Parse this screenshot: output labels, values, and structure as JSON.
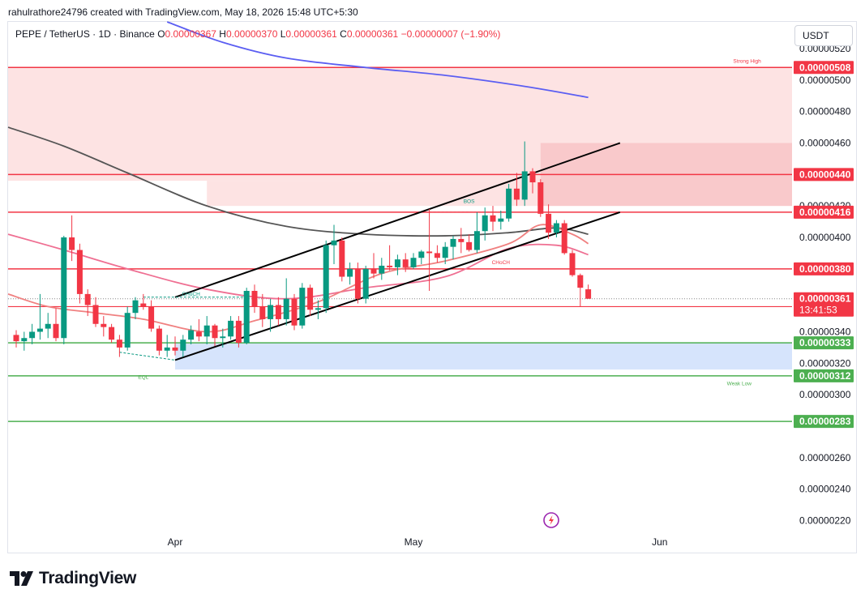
{
  "header": {
    "credit": "rahulrathore24796 created with TradingView.com, May 18, 2026 15:48 UTC+5:30"
  },
  "symbol": {
    "name": "PEPE / TetherUS · 1D · Binance",
    "open_label": "O",
    "open_value": "0.00000367",
    "high_label": "H",
    "high_value": "0.00000370",
    "low_label": "L",
    "low_value": "0.00000361",
    "close_label": "C",
    "close_value": "0.00000361",
    "change": "−0.00000007 (−1.90%)"
  },
  "currency": "USDT",
  "logo_text": "TradingView",
  "colors": {
    "up": "#089981",
    "down": "#f23645",
    "resistance": "#f23645",
    "support": "#4caf50",
    "ma_blue": "#5b5ef2",
    "ma_gray": "#555555",
    "ma_pink": "#ef6f92",
    "supply_zone": "#fde3e3",
    "supply_zone_dark": "#f9c9cb",
    "demand_zone": "#d6e4fc"
  },
  "chart_data": {
    "type": "candlestick",
    "ylim": [
      2.12e-06,
      5.37e-06
    ],
    "x_ticks": [
      {
        "label": "Apr",
        "index": 20
      },
      {
        "label": "May",
        "index": 50
      },
      {
        "label": "Jun",
        "index": 81
      }
    ],
    "y_ticks": [
      {
        "label": "0.00000520",
        "value": 5.2e-06
      },
      {
        "label": "0.00000500",
        "value": 5e-06
      },
      {
        "label": "0.00000480",
        "value": 4.8e-06
      },
      {
        "label": "0.00000460",
        "value": 4.6e-06
      },
      {
        "label": "0.00000420",
        "value": 4.2e-06
      },
      {
        "label": "0.00000400",
        "value": 4e-06
      },
      {
        "label": "0.00000340",
        "value": 3.4e-06
      },
      {
        "label": "0.00000320",
        "value": 3.2e-06
      },
      {
        "label": "0.00000300",
        "value": 3e-06
      },
      {
        "label": "0.00000260",
        "value": 2.6e-06
      },
      {
        "label": "0.00000240",
        "value": 2.4e-06
      },
      {
        "label": "0.00000220",
        "value": 2.2e-06
      }
    ],
    "candles": [
      [
        3.38e-06,
        3.41e-06,
        3.3e-06,
        3.34e-06
      ],
      [
        3.34e-06,
        3.4e-06,
        3.28e-06,
        3.36e-06
      ],
      [
        3.36e-06,
        3.45e-06,
        3.32e-06,
        3.4e-06
      ],
      [
        3.4e-06,
        3.64e-06,
        3.35e-06,
        3.42e-06
      ],
      [
        3.42e-06,
        3.52e-06,
        3.36e-06,
        3.45e-06
      ],
      [
        3.45e-06,
        3.55e-06,
        3.34e-06,
        3.36e-06
      ],
      [
        3.36e-06,
        4.01e-06,
        3.32e-06,
        4e-06
      ],
      [
        4e-06,
        4.14e-06,
        3.85e-06,
        3.92e-06
      ],
      [
        3.92e-06,
        3.96e-06,
        3.58e-06,
        3.64e-06
      ],
      [
        3.64e-06,
        3.67e-06,
        3.5e-06,
        3.57e-06
      ],
      [
        3.57e-06,
        3.62e-06,
        3.43e-06,
        3.45e-06
      ],
      [
        3.45e-06,
        3.5e-06,
        3.37e-06,
        3.43e-06
      ],
      [
        3.43e-06,
        3.45e-06,
        3.33e-06,
        3.35e-06
      ],
      [
        3.35e-06,
        3.38e-06,
        3.24e-06,
        3.3e-06
      ],
      [
        3.3e-06,
        3.56e-06,
        3.28e-06,
        3.52e-06
      ],
      [
        3.52e-06,
        3.62e-06,
        3.48e-06,
        3.6e-06
      ],
      [
        3.58e-06,
        3.64e-06,
        3.54e-06,
        3.56e-06
      ],
      [
        3.56e-06,
        3.6e-06,
        3.4e-06,
        3.42e-06
      ],
      [
        3.42e-06,
        3.44e-06,
        3.25e-06,
        3.28e-06
      ],
      [
        3.28e-06,
        3.38e-06,
        3.24e-06,
        3.3e-06
      ],
      [
        3.3e-06,
        3.37e-06,
        3.25e-06,
        3.28e-06
      ],
      [
        3.28e-06,
        3.38e-06,
        3.24e-06,
        3.35e-06
      ],
      [
        3.35e-06,
        3.44e-06,
        3.32e-06,
        3.41e-06
      ],
      [
        3.4e-06,
        3.48e-06,
        3.34e-06,
        3.37e-06
      ],
      [
        3.37e-06,
        3.5e-06,
        3.32e-06,
        3.44e-06
      ],
      [
        3.44e-06,
        3.45e-06,
        3.31e-06,
        3.36e-06
      ],
      [
        3.36e-06,
        3.42e-06,
        3.3e-06,
        3.37e-06
      ],
      [
        3.37e-06,
        3.5e-06,
        3.35e-06,
        3.47e-06
      ],
      [
        3.47e-06,
        3.5e-06,
        3.3e-06,
        3.33e-06
      ],
      [
        3.33e-06,
        3.68e-06,
        3.32e-06,
        3.66e-06
      ],
      [
        3.66e-06,
        3.7e-06,
        3.52e-06,
        3.56e-06
      ],
      [
        3.56e-06,
        3.64e-06,
        3.43e-06,
        3.48e-06
      ],
      [
        3.48e-06,
        3.61e-06,
        3.4e-06,
        3.57e-06
      ],
      [
        3.57e-06,
        3.62e-06,
        3.44e-06,
        3.48e-06
      ],
      [
        3.48e-06,
        3.74e-06,
        3.44e-06,
        3.61e-06
      ],
      [
        3.61e-06,
        3.64e-06,
        3.41e-06,
        3.44e-06
      ],
      [
        3.44e-06,
        3.71e-06,
        3.42e-06,
        3.68e-06
      ],
      [
        3.68e-06,
        3.7e-06,
        3.5e-06,
        3.54e-06
      ],
      [
        3.54e-06,
        3.6e-06,
        3.48e-06,
        3.55e-06
      ],
      [
        3.55e-06,
        3.98e-06,
        3.52e-06,
        3.95e-06
      ],
      [
        3.95e-06,
        4.08e-06,
        3.83e-06,
        3.98e-06
      ],
      [
        3.98e-06,
        4e-06,
        3.72e-06,
        3.75e-06
      ],
      [
        3.75e-06,
        3.84e-06,
        3.7e-06,
        3.8e-06
      ],
      [
        3.8e-06,
        3.84e-06,
        3.58e-06,
        3.61e-06
      ],
      [
        3.61e-06,
        3.82e-06,
        3.58e-06,
        3.8e-06
      ],
      [
        3.8e-06,
        3.9e-06,
        3.74e-06,
        3.77e-06
      ],
      [
        3.77e-06,
        3.87e-06,
        3.73e-06,
        3.82e-06
      ],
      [
        3.82e-06,
        3.95e-06,
        3.79e-06,
        3.81e-06
      ],
      [
        3.81e-06,
        3.89e-06,
        3.76e-06,
        3.86e-06
      ],
      [
        3.86e-06,
        3.9e-06,
        3.78e-06,
        3.81e-06
      ],
      [
        3.81e-06,
        3.9e-06,
        3.8e-06,
        3.87e-06
      ],
      [
        3.87e-06,
        3.92e-06,
        3.83e-06,
        3.91e-06
      ],
      [
        3.91e-06,
        4.18e-06,
        3.66e-06,
        3.9e-06
      ],
      [
        3.9e-06,
        3.95e-06,
        3.84e-06,
        3.87e-06
      ],
      [
        3.87e-06,
        3.97e-06,
        3.83e-06,
        3.94e-06
      ],
      [
        3.94e-06,
        4.01e-06,
        3.86e-06,
        3.99e-06
      ],
      [
        3.99e-06,
        4.06e-06,
        3.9e-06,
        3.97e-06
      ],
      [
        3.97e-06,
        4.02e-06,
        3.91e-06,
        3.92e-06
      ],
      [
        3.92e-06,
        4.16e-06,
        3.9e-06,
        4.04e-06
      ],
      [
        4.04e-06,
        4.19e-06,
        3.98e-06,
        4.14e-06
      ],
      [
        4.14e-06,
        4.2e-06,
        4.04e-06,
        4.1e-06
      ],
      [
        4.1e-06,
        4.17e-06,
        4.05e-06,
        4.12e-06
      ],
      [
        4.12e-06,
        4.34e-06,
        4.1e-06,
        4.31e-06
      ],
      [
        4.31e-06,
        4.41e-06,
        4.2e-06,
        4.24e-06
      ],
      [
        4.24e-06,
        4.61e-06,
        4.2e-06,
        4.42e-06
      ],
      [
        4.42e-06,
        4.44e-06,
        4.28e-06,
        4.35e-06
      ],
      [
        4.35e-06,
        4.37e-06,
        4.13e-06,
        4.15e-06
      ],
      [
        4.15e-06,
        4.21e-06,
        3.99e-06,
        4.03e-06
      ],
      [
        4.03e-06,
        4.11e-06,
        4e-06,
        4.09e-06
      ],
      [
        4.09e-06,
        4.11e-06,
        3.89e-06,
        3.9e-06
      ],
      [
        3.9e-06,
        3.92e-06,
        3.75e-06,
        3.76e-06
      ],
      [
        3.76e-06,
        3.77e-06,
        3.56e-06,
        3.68e-06
      ],
      [
        3.67e-06,
        3.7e-06,
        3.61e-06,
        3.61e-06
      ]
    ],
    "moving_averages": [
      {
        "color": "#5b5ef2",
        "points": [
          [
            19,
            5.37e-06
          ],
          [
            26,
            5.24e-06
          ],
          [
            34,
            5.14e-06
          ],
          [
            44,
            5.08e-06
          ],
          [
            54,
            5.03e-06
          ],
          [
            64,
            4.96e-06
          ],
          [
            72,
            4.89e-06
          ]
        ]
      },
      {
        "color": "#555555",
        "points": [
          [
            -2,
            4.7e-06
          ],
          [
            6,
            4.58e-06
          ],
          [
            14,
            4.41e-06
          ],
          [
            24,
            4.2e-06
          ],
          [
            34,
            4.07e-06
          ],
          [
            44,
            4.02e-06
          ],
          [
            54,
            4.01e-06
          ],
          [
            62,
            4.03e-06
          ],
          [
            68,
            4.06e-06
          ],
          [
            72,
            4.02e-06
          ]
        ]
      },
      {
        "color": "#ef6f92",
        "points": [
          [
            -2,
            4.02e-06
          ],
          [
            6,
            3.92e-06
          ],
          [
            14,
            3.8e-06
          ],
          [
            24,
            3.67e-06
          ],
          [
            34,
            3.61e-06
          ],
          [
            44,
            3.68e-06
          ],
          [
            54,
            3.75e-06
          ],
          [
            62,
            3.93e-06
          ],
          [
            68,
            3.95e-06
          ],
          [
            72,
            3.89e-06
          ]
        ]
      },
      {
        "color": "#f08080",
        "points": [
          [
            -2,
            3.64e-06
          ],
          [
            4,
            3.56e-06
          ],
          [
            10,
            3.52e-06
          ],
          [
            16,
            3.48e-06
          ],
          [
            24,
            3.4e-06
          ],
          [
            30,
            3.47e-06
          ],
          [
            38,
            3.59e-06
          ],
          [
            46,
            3.77e-06
          ],
          [
            54,
            3.85e-06
          ],
          [
            62,
            3.96e-06
          ],
          [
            66,
            4.08e-06
          ],
          [
            70,
            4.02e-06
          ],
          [
            72,
            3.96e-06
          ]
        ]
      }
    ],
    "levels": [
      {
        "label": "0.00000508",
        "value": 5.08e-06,
        "kind": "resistance"
      },
      {
        "label": "0.00000440",
        "value": 4.4e-06,
        "kind": "resistance"
      },
      {
        "label": "0.00000416",
        "value": 4.16e-06,
        "kind": "resistance"
      },
      {
        "label": "0.00000380",
        "value": 3.8e-06,
        "kind": "resistance"
      },
      {
        "label": "0.00000333",
        "value": 3.33e-06,
        "kind": "support"
      },
      {
        "label": "0.00000312",
        "value": 3.12e-06,
        "kind": "support"
      },
      {
        "label": "0.00000283",
        "value": 2.83e-06,
        "kind": "support"
      }
    ],
    "low_level": {
      "value": 3.56e-06
    },
    "last_price": {
      "label": "0.00000361",
      "value": 3.61e-06,
      "countdown": "13:41:53"
    },
    "zones": [
      {
        "kind": "supply",
        "from": 4.36e-06,
        "to": 5.08e-06,
        "x_from": -2,
        "x_to": 107
      },
      {
        "kind": "supply",
        "from": 4.2e-06,
        "to": 4.36e-06,
        "x_from": 24,
        "x_to": 107
      },
      {
        "kind": "supply_dark",
        "from": 4.2e-06,
        "to": 4.6e-06,
        "x_from": 66,
        "x_to": 107
      },
      {
        "kind": "demand",
        "from": 3.16e-06,
        "to": 3.33e-06,
        "x_from": 20,
        "x_to": 107
      }
    ],
    "channel": {
      "upper": [
        [
          20,
          3.62e-06
        ],
        [
          76,
          4.6e-06
        ]
      ],
      "lower": [
        [
          20,
          3.22e-06
        ],
        [
          76,
          4.16e-06
        ]
      ]
    },
    "annotations": [
      {
        "text": "Strong High",
        "x": 92,
        "value": 5.11e-06,
        "color": "#f23645"
      },
      {
        "text": "Weak Low",
        "x": 91,
        "value": 3.06e-06,
        "color": "#4caf50"
      },
      {
        "text": "EQL",
        "x": 16,
        "value": 3.1e-06,
        "color": "#4caf50"
      },
      {
        "text": "BOS",
        "x": 57,
        "value": 4.22e-06,
        "color": "#089981"
      },
      {
        "text": "CHoCH",
        "x": 61,
        "value": 3.83e-06,
        "color": "#f23645"
      },
      {
        "text": "CHoCH",
        "x": 22,
        "value": 3.63e-06,
        "color": "#089981"
      }
    ],
    "dashed_segments": [
      {
        "from": [
          16,
          3.62e-06
        ],
        "to": [
          29,
          3.62e-06
        ],
        "color": "#089981"
      },
      {
        "from": [
          52,
          4.16e-06
        ],
        "to": [
          62,
          4.16e-06
        ],
        "color": "#f23645"
      },
      {
        "from": [
          13,
          3.27e-06
        ],
        "to": [
          20,
          3.22e-06
        ],
        "color": "#089981"
      }
    ]
  }
}
